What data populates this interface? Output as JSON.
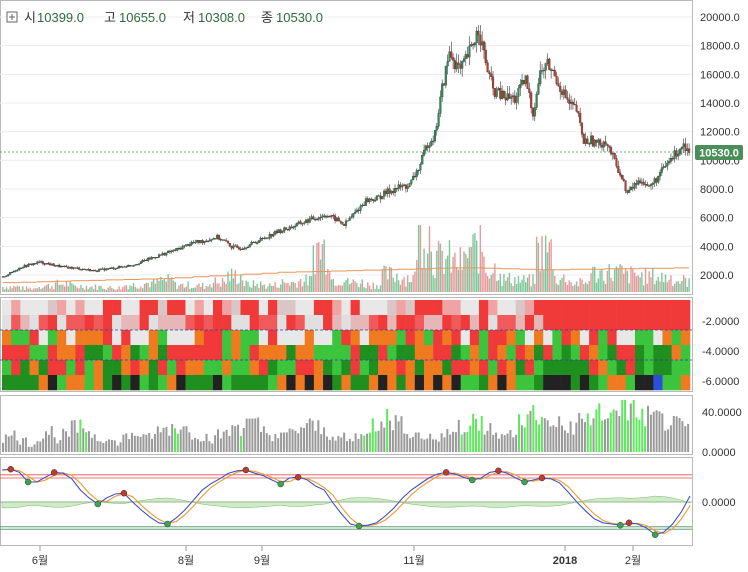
{
  "ohlc_header": {
    "open_label": "시",
    "open_value": "10399.0",
    "high_label": "고",
    "high_value": "10655.0",
    "low_label": "저",
    "low_value": "10308.0",
    "close_label": "종",
    "close_value": "10530.0",
    "expand_icon": "plus-square-icon"
  },
  "colors": {
    "up": "#2e8b57",
    "down": "#c0392b",
    "price_badge": "#4a8f5a",
    "volume_ma": "#e8955a",
    "heat_red": "#f03a3a",
    "heat_orange": "#f07a20",
    "heat_green": "#3cc43c",
    "bar_gray": "#9a9a9a",
    "bar_green": "#5ee85e",
    "osc_fast": "#3f51c8",
    "osc_slow": "#f09a30",
    "osc_line": "#e05050"
  },
  "x_axis": {
    "ticks": [
      "6월",
      "8월",
      "9월",
      "11월",
      "2018",
      "2월"
    ]
  },
  "chart_data": [
    {
      "type": "candlestick",
      "title": "",
      "ylim": [
        800,
        20500
      ],
      "yticks": [
        "2000.0",
        "4000.0",
        "6000.0",
        "8000.0",
        "10000.0",
        "12000.0",
        "14000.0",
        "16000.0",
        "18000.0",
        "20000.0"
      ],
      "last_price": 10530.0,
      "last_price_label": "10530.0",
      "close_path": [
        [
          0,
          1850
        ],
        [
          10,
          2550
        ],
        [
          20,
          2900
        ],
        [
          32,
          2580
        ],
        [
          42,
          2450
        ],
        [
          50,
          2300
        ],
        [
          62,
          2500
        ],
        [
          72,
          2720
        ],
        [
          80,
          3100
        ],
        [
          88,
          3450
        ],
        [
          96,
          3780
        ],
        [
          104,
          4250
        ],
        [
          110,
          4350
        ],
        [
          118,
          4650
        ],
        [
          124,
          4200
        ],
        [
          126,
          3950
        ],
        [
          132,
          3900
        ],
        [
          140,
          4350
        ],
        [
          150,
          4950
        ],
        [
          160,
          5400
        ],
        [
          170,
          5900
        ],
        [
          178,
          6200
        ],
        [
          184,
          5850
        ],
        [
          188,
          5500
        ],
        [
          194,
          6350
        ],
        [
          200,
          7200
        ],
        [
          206,
          7350
        ],
        [
          212,
          7800
        ],
        [
          218,
          8100
        ],
        [
          224,
          8250
        ],
        [
          230,
          9700
        ],
        [
          234,
          11200
        ],
        [
          238,
          11800
        ],
        [
          242,
          15000
        ],
        [
          246,
          17500
        ],
        [
          252,
          16200
        ],
        [
          258,
          17800
        ],
        [
          262,
          19200
        ],
        [
          266,
          16800
        ],
        [
          270,
          14900
        ],
        [
          276,
          14400
        ],
        [
          282,
          14300
        ],
        [
          288,
          15600
        ],
        [
          292,
          13300
        ],
        [
          296,
          16100
        ],
        [
          300,
          16700
        ],
        [
          304,
          15900
        ],
        [
          308,
          14900
        ],
        [
          312,
          13900
        ],
        [
          316,
          13500
        ],
        [
          320,
          11300
        ],
        [
          324,
          11400
        ],
        [
          328,
          11100
        ],
        [
          332,
          11400
        ],
        [
          336,
          10200
        ],
        [
          340,
          9100
        ],
        [
          344,
          7700
        ],
        [
          348,
          8300
        ],
        [
          352,
          8650
        ],
        [
          356,
          8100
        ],
        [
          360,
          8700
        ],
        [
          364,
          9400
        ],
        [
          368,
          10100
        ],
        [
          372,
          10700
        ],
        [
          375,
          11200
        ],
        [
          378,
          10530
        ]
      ]
    },
    {
      "type": "bar",
      "title": "",
      "series": [
        {
          "values": [
            640,
            450,
            760,
            980,
            710,
            630,
            520,
            880,
            1090,
            1400,
            850,
            760,
            1220,
            1980,
            940,
            820,
            1150,
            1400,
            5350,
            1560,
            1170,
            920,
            2100,
            1800,
            7200,
            4100,
            3600,
            5200,
            2900,
            1580,
            1400,
            5100,
            1650,
            1100,
            2300,
            2400,
            2100,
            1900,
            1800,
            1400
          ]
        },
        {
          "values": [
            1050,
            1100,
            1150,
            1200,
            1250,
            1300,
            1350,
            1400,
            1450,
            1500,
            1600,
            1700,
            1800,
            1900,
            2000,
            2100,
            2200,
            2250,
            2300,
            2350,
            2400,
            2450,
            2500,
            2550,
            2600,
            2650,
            2700,
            2700,
            2650,
            2600,
            2550,
            2500,
            2500,
            2550,
            2550,
            2600,
            2600,
            2650,
            2650,
            2700
          ]
        }
      ]
    },
    {
      "type": "heatmap",
      "title": "",
      "ylim": [
        -6.6,
        -0.6
      ],
      "yticks": [
        "-2.0000",
        "-4.0000",
        "-6.0000"
      ],
      "rows": 6,
      "columns": 75
    },
    {
      "type": "bar",
      "title": "",
      "ylim": [
        0,
        52
      ],
      "yticks": [
        "0.0000",
        "40.0000"
      ],
      "values": [
        15,
        18,
        12,
        8,
        16,
        22,
        14,
        18,
        25,
        26,
        20,
        15,
        12,
        10,
        16,
        20,
        14,
        18,
        22,
        25,
        28,
        24,
        20,
        16,
        14,
        18,
        22,
        26,
        30,
        28,
        22,
        18,
        16,
        20,
        24,
        28,
        26,
        22,
        18,
        15,
        12,
        16,
        22,
        30,
        35,
        34,
        28,
        22,
        18,
        16,
        14,
        18,
        22,
        28,
        32,
        30,
        24,
        20,
        16,
        20,
        34,
        40,
        38,
        32,
        28,
        24,
        28,
        32,
        36,
        38,
        42,
        44,
        46,
        44,
        40,
        36,
        34,
        32,
        28,
        24
      ],
      "highlighted": [
        9,
        20,
        27,
        42,
        43,
        44,
        53,
        54,
        55,
        60,
        61,
        62,
        68,
        69,
        70,
        71,
        72,
        73,
        74
      ]
    },
    {
      "type": "line",
      "title": "",
      "ylim": [
        -1.05,
        1.05
      ],
      "yticks": [
        "0.0000"
      ],
      "upper_band": [
        0.68,
        0.6
      ],
      "lower_band": [
        -0.68,
        -0.62
      ],
      "series": [
        {
          "values": [
            0.8,
            0.82,
            0.74,
            0.5,
            0.5,
            0.62,
            0.74,
            0.72,
            0.58,
            0.3,
            0.1,
            -0.05,
            0.1,
            0.2,
            0.22,
            0.0,
            -0.2,
            -0.38,
            -0.52,
            -0.55,
            -0.4,
            -0.2,
            0.05,
            0.3,
            0.46,
            0.58,
            0.72,
            0.78,
            0.8,
            0.72,
            0.66,
            0.55,
            0.45,
            0.6,
            0.62,
            0.56,
            0.4,
            0.3,
            -0.02,
            -0.3,
            -0.55,
            -0.6,
            -0.58,
            -0.52,
            -0.35,
            -0.15,
            0.1,
            0.3,
            0.45,
            0.6,
            0.7,
            0.74,
            0.7,
            0.62,
            0.55,
            0.6,
            0.74,
            0.78,
            0.72,
            0.6,
            0.5,
            0.55,
            0.6,
            0.58,
            0.48,
            0.25,
            0.0,
            -0.22,
            -0.42,
            -0.52,
            -0.55,
            -0.58,
            -0.52,
            -0.55,
            -0.65,
            -0.82,
            -0.75,
            -0.55,
            -0.25,
            0.15
          ]
        }
      ]
    }
  ]
}
